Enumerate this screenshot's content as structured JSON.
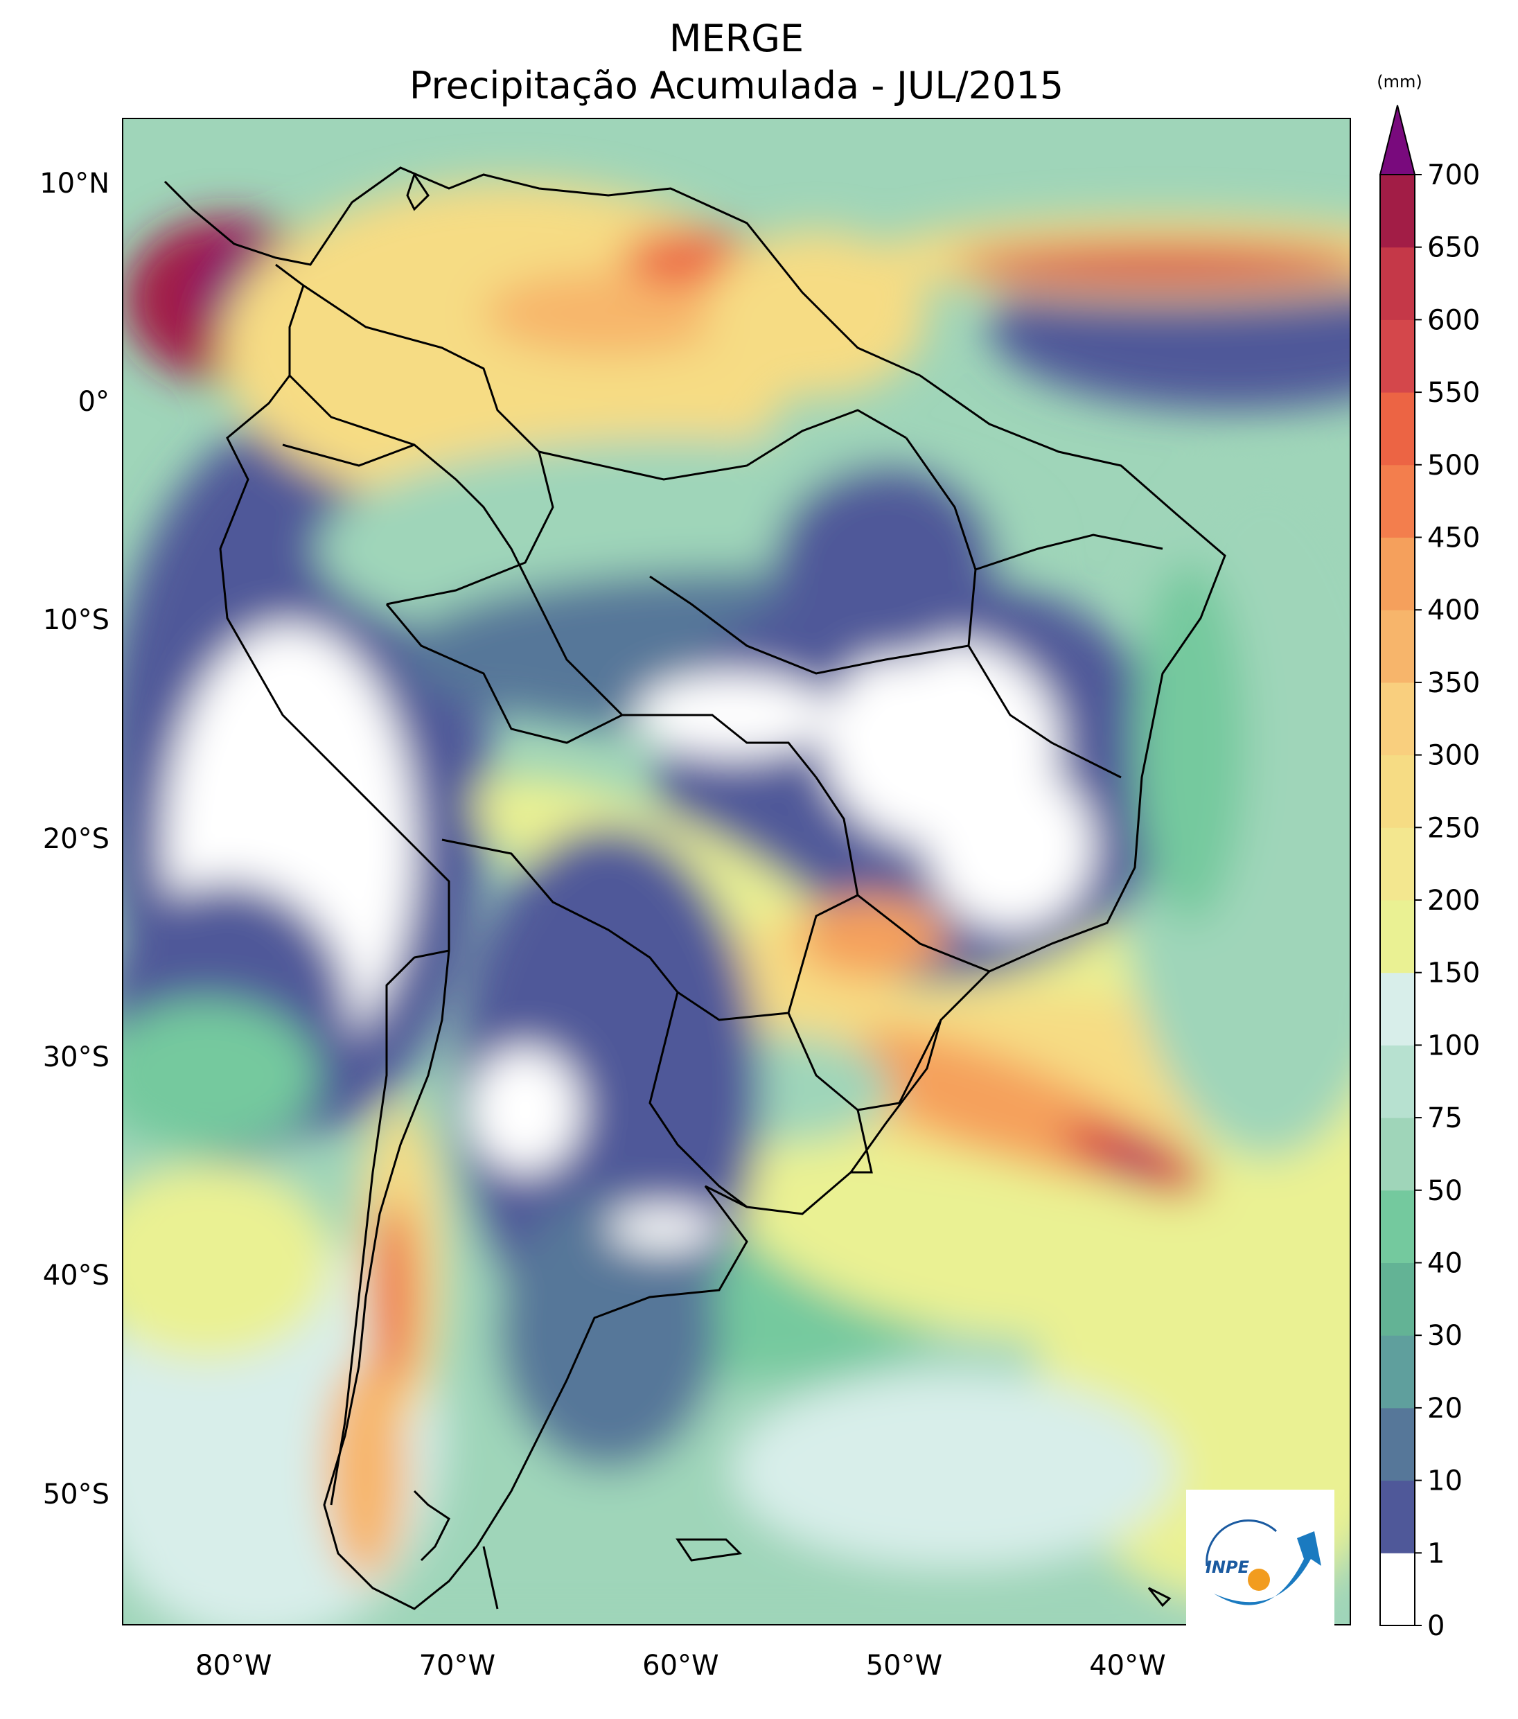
{
  "title": "MERGE",
  "subtitle": "Precipitação Acumulada - JUL/2015",
  "units": "(mm)",
  "lat_ticks": [
    {
      "label": "10°N",
      "value": 10
    },
    {
      "label": "0°",
      "value": 0
    },
    {
      "label": "10°S",
      "value": -10
    },
    {
      "label": "20°S",
      "value": -20
    },
    {
      "label": "30°S",
      "value": -30
    },
    {
      "label": "40°S",
      "value": -40
    },
    {
      "label": "50°S",
      "value": -50
    }
  ],
  "lon_ticks": [
    {
      "label": "80°W",
      "value": -80
    },
    {
      "label": "70°W",
      "value": -70
    },
    {
      "label": "60°W",
      "value": -60
    },
    {
      "label": "50°W",
      "value": -50
    },
    {
      "label": "40°W",
      "value": -40
    }
  ],
  "extent": {
    "lon_min": -85,
    "lon_max": -30,
    "lat_min": -56,
    "lat_max": 13
  },
  "colorbar": {
    "levels": [
      "0",
      "1",
      "10",
      "20",
      "30",
      "40",
      "50",
      "75",
      "100",
      "150",
      "200",
      "250",
      "300",
      "350",
      "400",
      "450",
      "500",
      "550",
      "600",
      "650",
      "700"
    ],
    "colors": [
      "#ffffff",
      "#4f5899",
      "#567799",
      "#5f9f9d",
      "#63b395",
      "#74c99e",
      "#9fd5b9",
      "#b7e1d0",
      "#d8eeea",
      "#eaf193",
      "#f3e78f",
      "#f6dc84",
      "#f9cf7e",
      "#f7b56b",
      "#f5a05c",
      "#f37e4d",
      "#ec6444",
      "#d4474b",
      "#c53848",
      "#a21d46"
    ],
    "extend_color": "#790a7d"
  },
  "logo": {
    "text": "INPE"
  }
}
